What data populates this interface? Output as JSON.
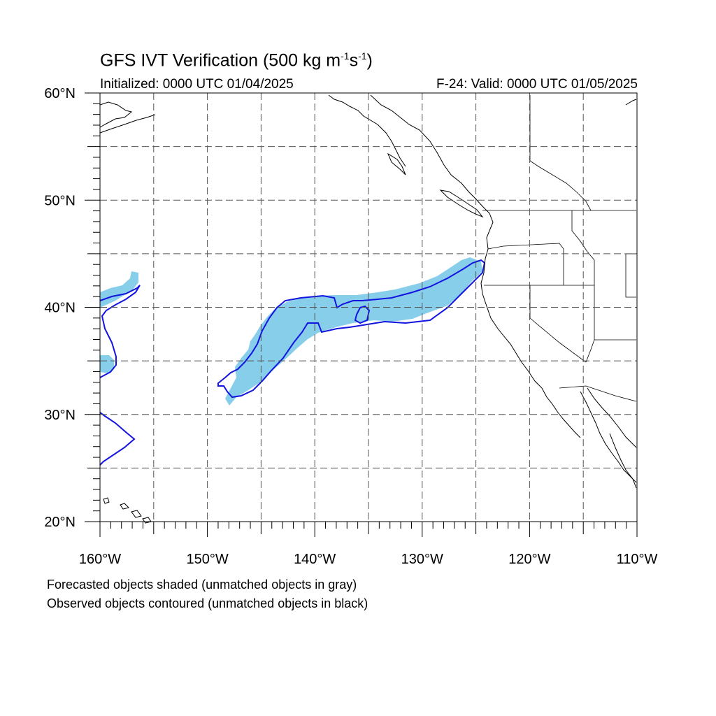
{
  "title": {
    "prefix": "GFS IVT Verification (500 kg m",
    "exp1": "-1",
    "mid": "s",
    "exp2": "-1",
    "suffix": ")"
  },
  "initialized": "Initialized: 0000 UTC 01/04/2025",
  "valid": "F-24: Valid: 0000 UTC 01/05/2025",
  "captions": [
    "Forecasted objects shaded (unmatched objects in gray)",
    "Observed objects contoured (unmatched objects in black)"
  ],
  "map": {
    "lon_range": [
      -160,
      -110
    ],
    "lat_range": [
      20,
      60
    ],
    "lon_labels": [
      "160°W",
      "150°W",
      "140°W",
      "130°W",
      "120°W",
      "110°W"
    ],
    "lat_labels": [
      "20°N",
      "30°N",
      "40°N",
      "50°N",
      "60°N"
    ],
    "grid": "dashed every 5°",
    "colors": {
      "forecast_shading": "#87ceeb",
      "observed_contour": "#1414e0",
      "coastline": "#000000",
      "grid": "#555555"
    }
  }
}
